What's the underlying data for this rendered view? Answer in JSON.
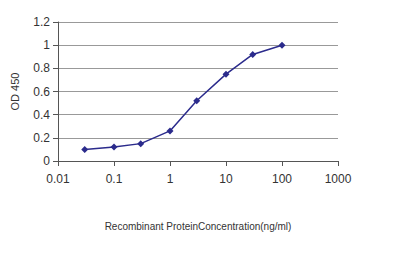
{
  "chart_data": {
    "type": "line",
    "x_label": "Recombinant ProteinConcentration(ng/ml)",
    "y_label": "OD 450",
    "x": [
      0.03,
      0.1,
      0.3,
      1,
      3,
      10,
      30,
      100
    ],
    "values": [
      0.1,
      0.12,
      0.15,
      0.26,
      0.52,
      0.75,
      0.92,
      1.0
    ],
    "color": "#2b2b8c",
    "marker": "diamond",
    "line_style": "solid",
    "log": "x",
    "xlim": [
      0.01,
      1000
    ],
    "xticks": [
      0.01,
      0.1,
      1,
      10,
      100,
      1000
    ],
    "ylim": [
      0,
      1.2
    ],
    "yticks": [
      0,
      0.2,
      0.4,
      0.6,
      0.8,
      1,
      1.2
    ],
    "grid": true
  }
}
